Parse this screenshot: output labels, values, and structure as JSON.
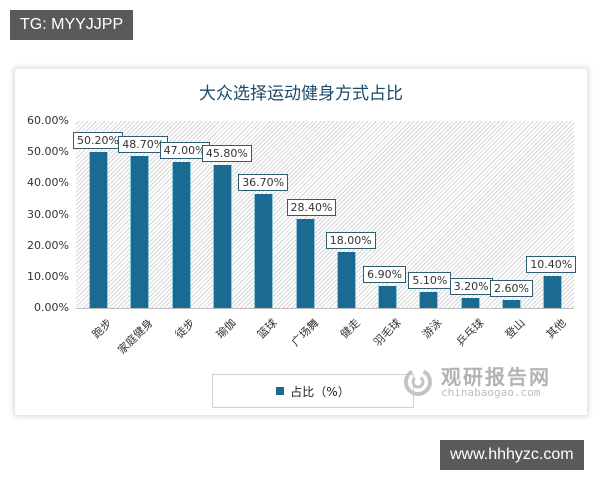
{
  "overlay": {
    "top_left_tag": "TG: MYYJJPP",
    "bottom_right_tag": "www.hhhyzc.com"
  },
  "watermark": {
    "cn": "观研报告网",
    "en": "chinabaogao.com",
    "icon": "swirl-logo-icon"
  },
  "legend": {
    "label": "占比（%）",
    "swatch_color": "#1a6a92"
  },
  "colors": {
    "bar": "#1a6a92",
    "title": "#1b4a6b",
    "label_border": "#2f5d6f"
  },
  "chart_data": {
    "type": "bar",
    "title": "大众选择运动健身方式占比",
    "xlabel": "",
    "ylabel": "",
    "categories": [
      "跑步",
      "家庭健身",
      "徒步",
      "瑜伽",
      "篮球",
      "广场舞",
      "健走",
      "羽毛球",
      "游泳",
      "乒乓球",
      "登山",
      "其他"
    ],
    "series": [
      {
        "name": "占比（%）",
        "values": [
          50.2,
          48.7,
          47.0,
          45.8,
          36.7,
          28.4,
          18.0,
          6.9,
          5.1,
          3.2,
          2.6,
          10.4
        ]
      }
    ],
    "value_labels": [
      "50.20%",
      "48.70%",
      "47.00%",
      "45.80%",
      "36.70%",
      "28.40%",
      "18.00%",
      "6.90%",
      "5.10%",
      "3.20%",
      "2.60%",
      "10.40%"
    ],
    "yticks": [
      "0.00%",
      "10.00%",
      "20.00%",
      "30.00%",
      "40.00%",
      "50.00%",
      "60.00%"
    ],
    "ylim": [
      0,
      60
    ],
    "grid": false,
    "background_pattern": "diagonal-hatch",
    "legend_position": "bottom-center"
  }
}
